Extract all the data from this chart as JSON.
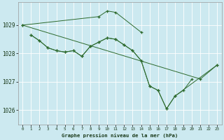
{
  "background_color": "#cce9f0",
  "grid_color": "#ffffff",
  "line_color": "#2d6a2d",
  "title": "Graphe pression niveau de la mer (hPa)",
  "xlim": [
    -0.5,
    23.5
  ],
  "ylim": [
    1025.5,
    1029.8
  ],
  "yticks": [
    1026,
    1027,
    1028,
    1029
  ],
  "xticks": [
    0,
    1,
    2,
    3,
    4,
    5,
    6,
    7,
    8,
    9,
    10,
    11,
    12,
    13,
    14,
    15,
    16,
    17,
    18,
    19,
    20,
    21,
    22,
    23
  ],
  "line1": {
    "x": [
      0,
      9,
      10,
      11,
      14
    ],
    "y": [
      1029.0,
      1029.3,
      1029.5,
      1029.45,
      1028.75
    ]
  },
  "line2": {
    "x": [
      1,
      2,
      3,
      4,
      5,
      6,
      7,
      8,
      9,
      10,
      11,
      12,
      13,
      14,
      15,
      16,
      17,
      18,
      19,
      20
    ],
    "y": [
      1028.65,
      1028.45,
      1028.2,
      1028.1,
      1028.05,
      1028.1,
      1027.9,
      1028.25,
      1028.4,
      1028.55,
      1028.5,
      1028.3,
      1028.1,
      1027.75,
      1026.85,
      1026.7,
      1026.05,
      1026.5,
      1026.7,
      1027.1
    ]
  },
  "line3": {
    "x": [
      1,
      2,
      3,
      4,
      5,
      6,
      7,
      8,
      9,
      10,
      11,
      12,
      13,
      14,
      15,
      16,
      17,
      18,
      23
    ],
    "y": [
      1028.65,
      1028.45,
      1028.2,
      1028.1,
      1028.05,
      1028.1,
      1027.9,
      1028.25,
      1028.4,
      1028.55,
      1028.5,
      1028.3,
      1028.1,
      1027.75,
      1026.85,
      1026.7,
      1026.05,
      1026.5,
      1027.6
    ]
  },
  "line4": {
    "comment": "long diagonal from x=0 (1029) to x=21 (1027.1) to x=23 (1027.6)",
    "x": [
      0,
      21,
      23
    ],
    "y": [
      1029.0,
      1027.1,
      1027.6
    ]
  }
}
